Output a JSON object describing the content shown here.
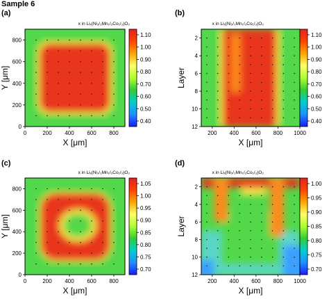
{
  "figure": {
    "sample_label": "Sample 6",
    "colormap": [
      "#1a1aff",
      "#1e90ff",
      "#00ced1",
      "#32cd32",
      "#adff2f",
      "#ffff66",
      "#ffa500",
      "#ff4500",
      "#e62020"
    ]
  },
  "chart_data": [
    {
      "type": "heatmap",
      "panel_label": "(a)",
      "xlabel": "X [μm]",
      "ylabel": "Y [μm]",
      "colorbar_title": "x in Liₓ(Ni₁/₃Mn₁/₃Co₁/₃)O₂",
      "xlim": [
        0,
        900
      ],
      "ylim": [
        0,
        900
      ],
      "xticks": [
        "0",
        "200",
        "400",
        "600",
        "800"
      ],
      "yticks": [
        "0",
        "200",
        "400",
        "600",
        "800"
      ],
      "zrange": [
        0.4,
        1.15
      ],
      "colorbar_ticks": [
        "1.10",
        "1.00",
        "0.90",
        "0.80",
        "0.70",
        "0.60",
        "0.50",
        "0.40"
      ],
      "pattern": "filled square: red inside roughly 120-760 µm in X and Y, green outside",
      "samples_x": [
        100,
        200,
        300,
        400,
        500,
        600,
        700,
        800
      ],
      "samples_y": [
        100,
        200,
        300,
        400,
        500,
        600,
        700,
        800
      ]
    },
    {
      "type": "heatmap",
      "panel_label": "(b)",
      "xlabel": "X [μm]",
      "ylabel": "Layer",
      "colorbar_title": "x in Liₓ(Ni₁/₃Mn₁/₃Co₁/₃)O₂",
      "xlim": [
        100,
        1000
      ],
      "ylim": [
        12,
        1
      ],
      "xticks": [
        "200",
        "400",
        "600",
        "800",
        "1000"
      ],
      "yticks": [
        "2",
        "4",
        "6",
        "8",
        "10",
        "12"
      ],
      "zrange": [
        0.4,
        1.15
      ],
      "colorbar_ticks": [
        "1.10",
        "1.00",
        "0.90",
        "0.80",
        "0.70",
        "0.60",
        "0.50",
        "0.40"
      ],
      "pattern": "red vertical band from ~300 to ~800 µm across all layers, green outside",
      "samples_x": [
        150,
        250,
        350,
        450,
        550,
        650,
        750,
        850,
        950
      ],
      "samples_layer": [
        2,
        3,
        4,
        5,
        6,
        7,
        8,
        9,
        10,
        11
      ]
    },
    {
      "type": "heatmap",
      "panel_label": "(c)",
      "xlabel": "X [μm]",
      "ylabel": "Y [μm]",
      "colorbar_title": "x in Liₓ(Ni₁/₃Mn₁/₃Co₁/₃)O₂",
      "xlim": [
        0,
        900
      ],
      "ylim": [
        0,
        900
      ],
      "xticks": [
        "0",
        "200",
        "400",
        "600",
        "800"
      ],
      "yticks": [
        "0",
        "200",
        "400",
        "600",
        "800"
      ],
      "zrange": [
        0.7,
        1.05
      ],
      "colorbar_ticks": [
        "1.05",
        "1.00",
        "0.95",
        "0.90",
        "0.85",
        "0.80",
        "0.75",
        "0.70"
      ],
      "pattern": "red ring (outer ~130-760 µm) with green centre around (480, 460) µm",
      "samples_x": [
        100,
        200,
        300,
        400,
        500,
        600,
        700,
        800
      ],
      "samples_y": [
        100,
        200,
        300,
        400,
        500,
        600,
        700,
        800
      ]
    },
    {
      "type": "heatmap",
      "panel_label": "(d)",
      "xlabel": "X [μm]",
      "ylabel": "Layer",
      "colorbar_title": "x in Liₓ(Ni₁/₃Mn₁/₃Co₁/₃)O₂",
      "xlim": [
        100,
        1000
      ],
      "ylim": [
        12,
        1
      ],
      "xticks": [
        "200",
        "400",
        "600",
        "800",
        "1000"
      ],
      "yticks": [
        "2",
        "4",
        "6",
        "8",
        "10",
        "12"
      ],
      "zrange": [
        0.7,
        1.0
      ],
      "colorbar_ticks": [
        "1.00",
        "0.95",
        "0.90",
        "0.85",
        "0.80",
        "0.75",
        "0.70"
      ],
      "pattern": "red at top layers; red branches down near 300 and 800 µm; green middle; blue at bottom corners",
      "samples_x": [
        150,
        250,
        350,
        450,
        550,
        650,
        750,
        850,
        950
      ],
      "samples_layer": [
        2,
        3,
        4,
        5,
        6,
        7,
        8,
        9,
        10,
        11
      ]
    }
  ]
}
